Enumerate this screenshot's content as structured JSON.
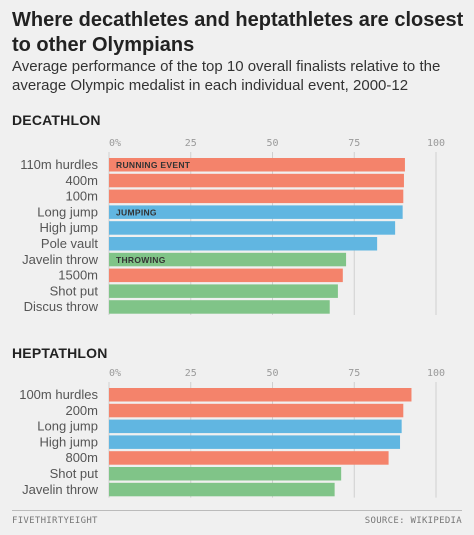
{
  "title": "Where decathletes and heptathletes are closest to other Olympians",
  "subtitle": "Average performance of the top 10 overall finalists relative to the average Olympic medalist in each individual event, 2000-12",
  "footer": {
    "logo": "FIVETHIRTYEIGHT",
    "source": "SOURCE: WIKIPEDIA"
  },
  "colors": {
    "running": "#f4836b",
    "jumping": "#61b6e1",
    "throwing": "#80c488"
  },
  "chart_data": [
    {
      "type": "bar",
      "title": "DECATHLON",
      "orientation": "horizontal",
      "xlim": [
        0,
        100
      ],
      "ticks": [
        "0%",
        "25",
        "50",
        "75",
        "100"
      ],
      "grid": true,
      "categories": [
        "110m hurdles",
        "400m",
        "100m",
        "Long jump",
        "High jump",
        "Pole vault",
        "Javelin throw",
        "1500m",
        "Shot put",
        "Discus throw"
      ],
      "values": [
        90.5,
        90.2,
        90.0,
        89.8,
        87.5,
        82.0,
        72.5,
        71.5,
        70.0,
        67.5
      ],
      "groups": [
        "running",
        "running",
        "running",
        "jumping",
        "jumping",
        "jumping",
        "throwing",
        "running",
        "throwing",
        "throwing"
      ],
      "annotations": [
        {
          "category": "110m hurdles",
          "text": "RUNNING EVENT"
        },
        {
          "category": "Long jump",
          "text": "JUMPING"
        },
        {
          "category": "Javelin throw",
          "text": "THROWING"
        }
      ]
    },
    {
      "type": "bar",
      "title": "HEPTATHLON",
      "orientation": "horizontal",
      "xlim": [
        0,
        100
      ],
      "ticks": [
        "0%",
        "25",
        "50",
        "75",
        "100"
      ],
      "grid": true,
      "categories": [
        "100m hurdles",
        "200m",
        "Long jump",
        "High jump",
        "800m",
        "Shot put",
        "Javelin throw"
      ],
      "values": [
        92.5,
        90.0,
        89.5,
        89.0,
        85.5,
        71.0,
        69.0
      ],
      "groups": [
        "running",
        "running",
        "jumping",
        "jumping",
        "running",
        "throwing",
        "throwing"
      ],
      "annotations": []
    }
  ]
}
